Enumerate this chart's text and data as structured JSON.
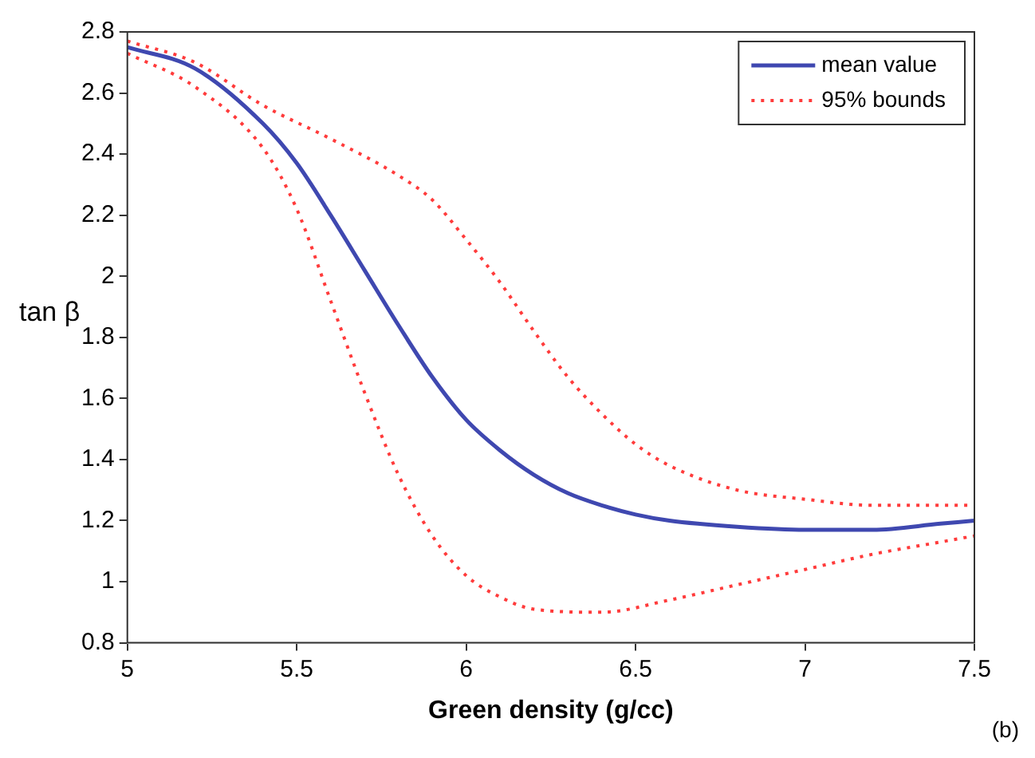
{
  "chart_data": {
    "type": "line",
    "xlabel": "Green density (g/cc)",
    "ylabel": "tan β",
    "annotations": [
      "(b)"
    ],
    "xlim": [
      5,
      7.5
    ],
    "xticks": [
      5,
      5.5,
      6,
      6.5,
      7,
      7.5
    ],
    "ylim": [
      0.8,
      2.8
    ],
    "yticks": [
      0.8,
      1,
      1.2,
      1.4,
      1.6,
      1.8,
      2,
      2.2,
      2.4,
      2.6,
      2.8
    ],
    "grid": false,
    "legend": "top right",
    "marker": "none",
    "series": [
      {
        "name": "mean value",
        "color": "#3f48b0",
        "line_style": "solid",
        "x": [
          5,
          5.2,
          5.4,
          5.5,
          5.6,
          5.7,
          5.8,
          5.9,
          6,
          6.1,
          6.2,
          6.3,
          6.4,
          6.5,
          6.6,
          6.8,
          7,
          7.2,
          7.4,
          7.5
        ],
        "values": [
          2.75,
          2.68,
          2.5,
          2.37,
          2.2,
          2.02,
          1.84,
          1.67,
          1.53,
          1.43,
          1.35,
          1.29,
          1.25,
          1.22,
          1.2,
          1.18,
          1.17,
          1.17,
          1.19,
          1.2
        ]
      },
      {
        "name": "95% bounds",
        "color": "#ff3b3b",
        "line_style": "dotted",
        "x": [
          5,
          5.2,
          5.4,
          5.6,
          5.8,
          5.9,
          6,
          6.1,
          6.2,
          6.3,
          6.4,
          6.5,
          6.6,
          6.8,
          7,
          7.2,
          7.5
        ],
        "values": [
          2.77,
          2.7,
          2.56,
          2.45,
          2.33,
          2.25,
          2.12,
          1.98,
          1.82,
          1.67,
          1.55,
          1.45,
          1.38,
          1.3,
          1.27,
          1.25,
          1.25
        ]
      },
      {
        "color": "#ff3b3b",
        "line_style": "dotted",
        "x": [
          5,
          5.2,
          5.4,
          5.5,
          5.6,
          5.7,
          5.8,
          5.9,
          6,
          6.1,
          6.2,
          6.4,
          6.6,
          6.8,
          7,
          7.2,
          7.4,
          7.5
        ],
        "values": [
          2.73,
          2.62,
          2.42,
          2.22,
          1.92,
          1.62,
          1.35,
          1.15,
          1.02,
          0.95,
          0.91,
          0.9,
          0.94,
          0.99,
          1.04,
          1.09,
          1.13,
          1.15
        ]
      }
    ]
  }
}
